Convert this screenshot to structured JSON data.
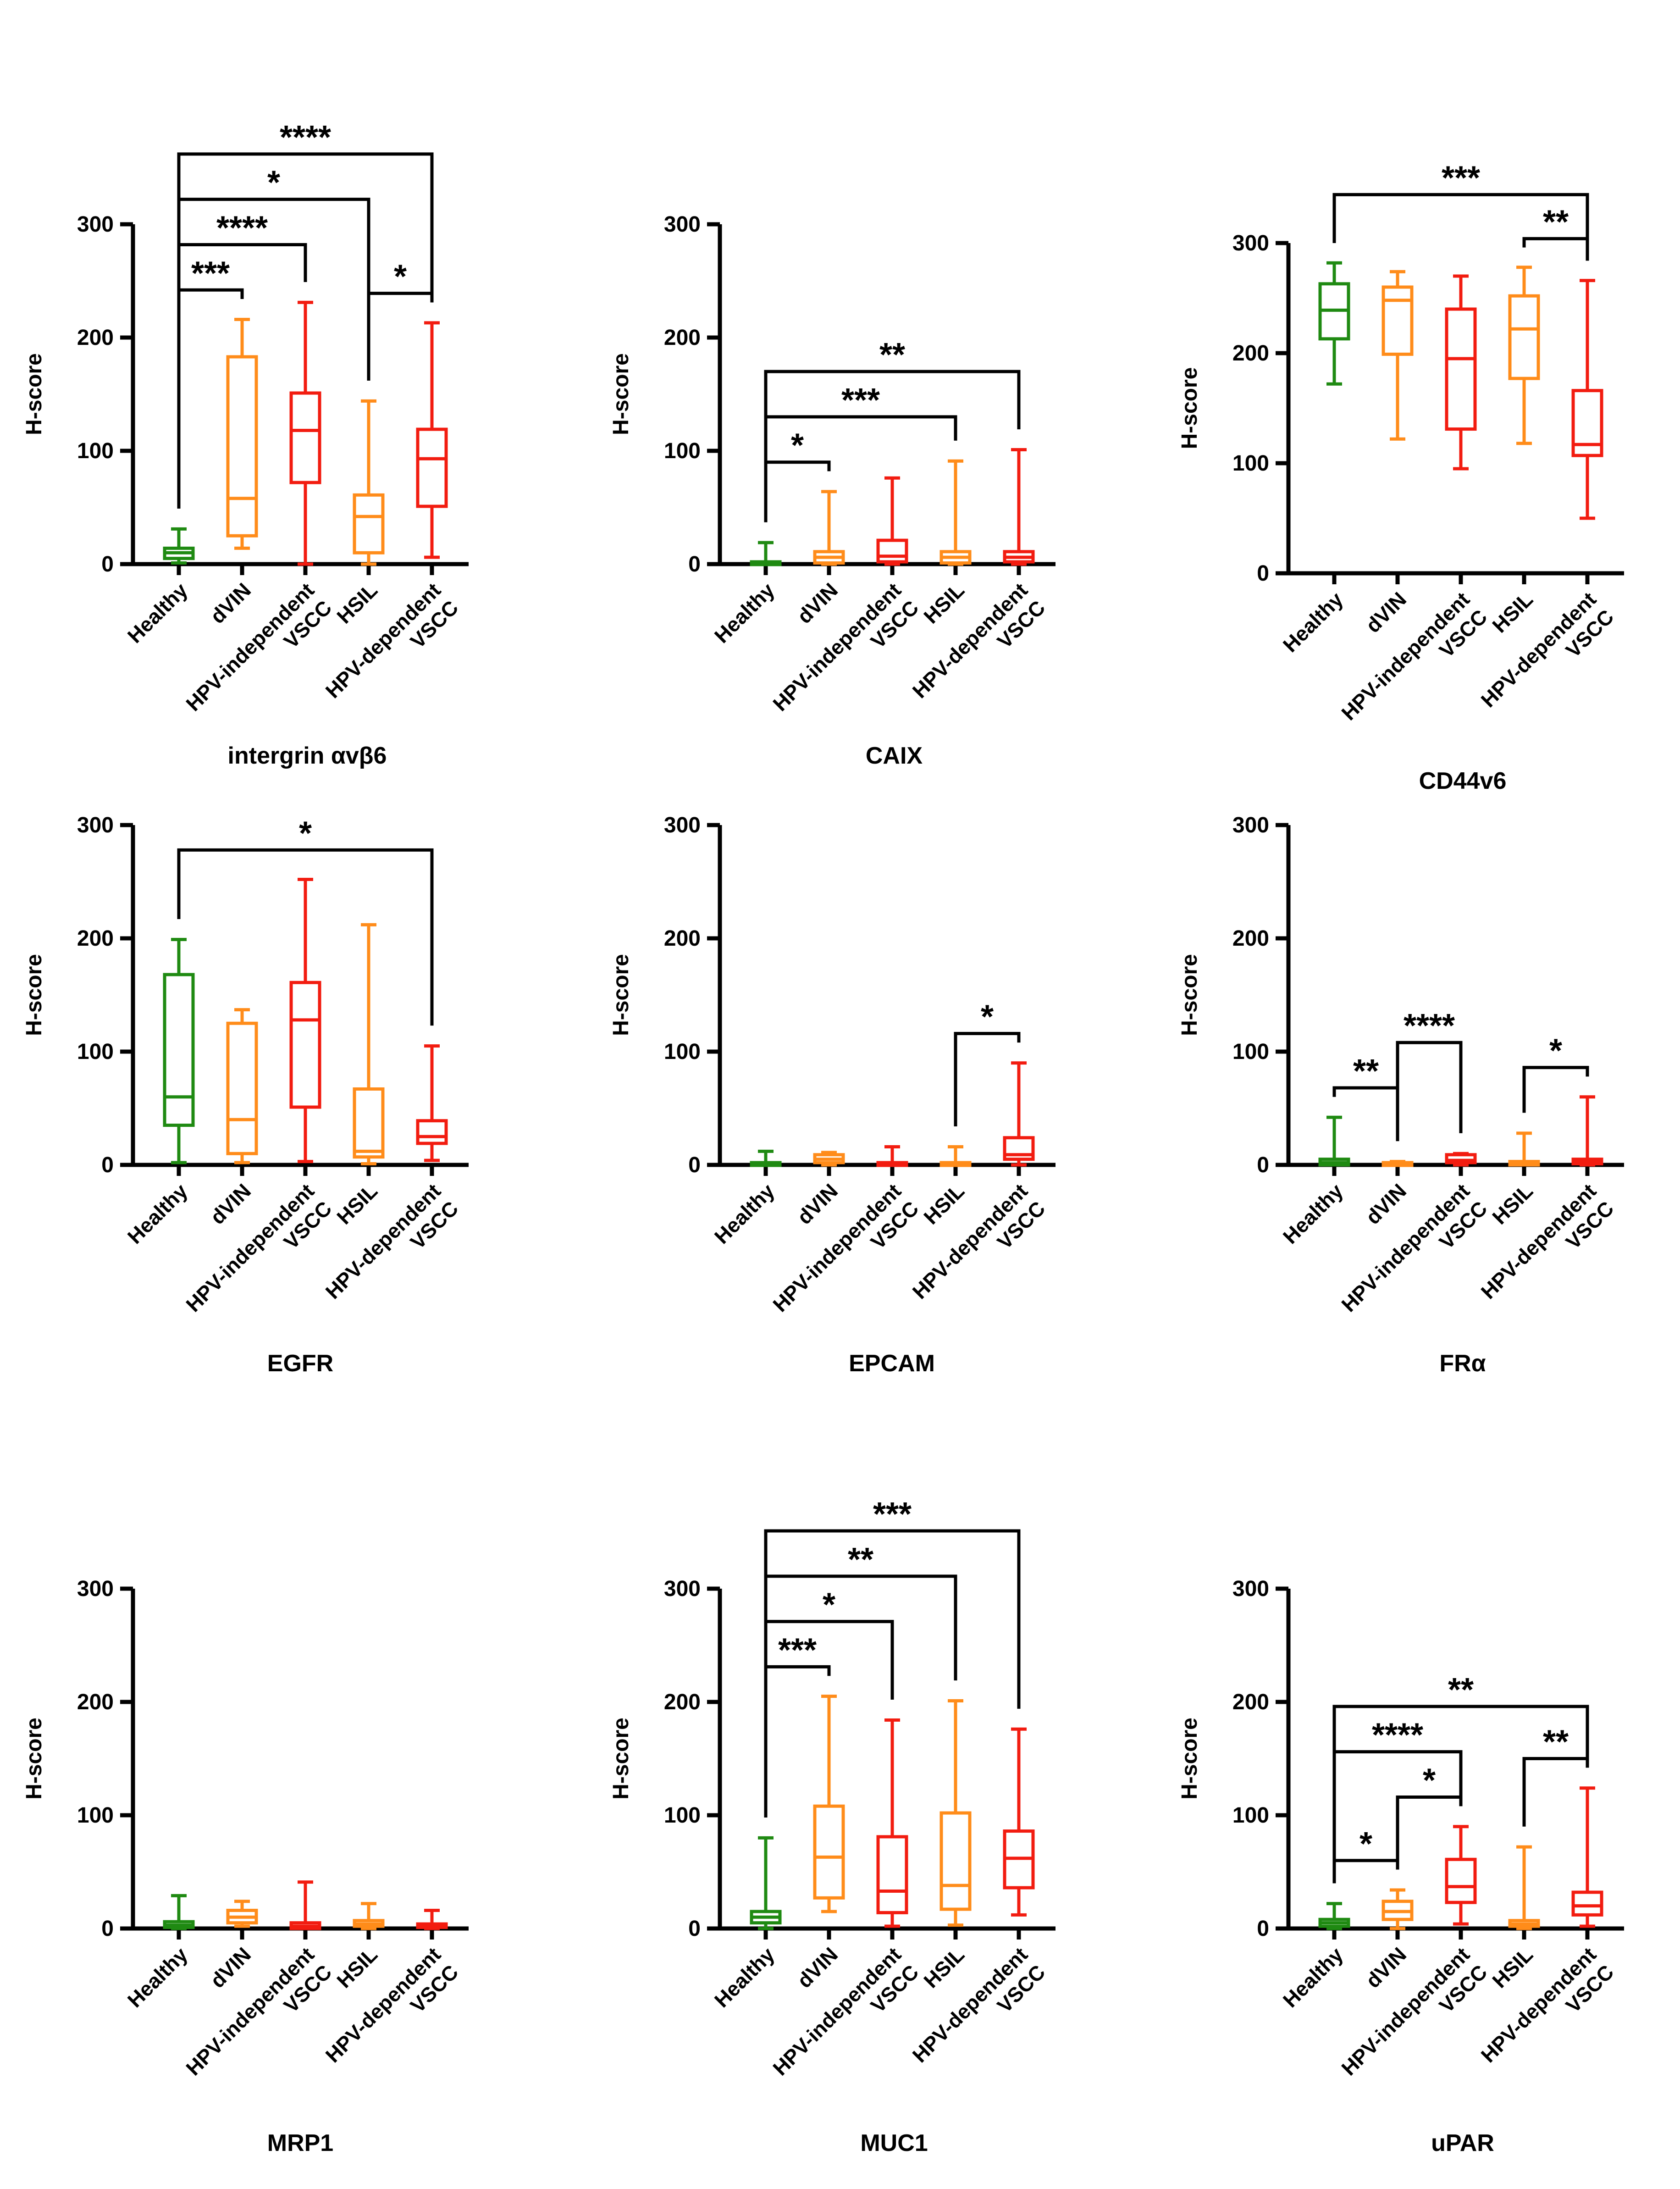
{
  "chart_data": [
    {
      "type": "box",
      "title": "intergrin αvβ6",
      "ylabel": "H-score",
      "ylim": [
        0,
        300
      ],
      "yticks": [
        "0",
        "100",
        "200",
        "300"
      ],
      "categories": [
        "Healthy",
        "dVIN",
        "HPV-independent VSCC",
        "HSIL",
        "HPV-dependent VSCC"
      ],
      "boxes": [
        {
          "min": 1,
          "q1": 5,
          "median": 10,
          "q3": 14,
          "max": 31
        },
        {
          "min": 14,
          "q1": 25,
          "median": 58,
          "q3": 183,
          "max": 216
        },
        {
          "min": 0,
          "q1": 72,
          "median": 118,
          "q3": 151,
          "max": 231
        },
        {
          "min": 0,
          "q1": 10,
          "median": 42,
          "q3": 61,
          "max": 144
        },
        {
          "min": 6,
          "q1": 51,
          "median": 93,
          "q3": 119,
          "max": 213
        }
      ],
      "significance": [
        {
          "from": 0,
          "to": 1,
          "label": "***"
        },
        {
          "from": 0,
          "to": 2,
          "label": "****"
        },
        {
          "from": 0,
          "to": 3,
          "label": "*"
        },
        {
          "from": 0,
          "to": 4,
          "label": "****"
        },
        {
          "from": 3,
          "to": 4,
          "label": "*"
        }
      ]
    },
    {
      "type": "box",
      "title": "CAIX",
      "ylabel": "H-score",
      "ylim": [
        0,
        300
      ],
      "yticks": [
        "0",
        "100",
        "200",
        "300"
      ],
      "categories": [
        "Healthy",
        "dVIN",
        "HPV-independent VSCC",
        "HSIL",
        "HPV-dependent VSCC"
      ],
      "boxes": [
        {
          "min": 0,
          "q1": 0,
          "median": 1,
          "q3": 2,
          "max": 19
        },
        {
          "min": 0,
          "q1": 1,
          "median": 6,
          "q3": 11,
          "max": 64
        },
        {
          "min": 0,
          "q1": 2,
          "median": 7,
          "q3": 21,
          "max": 76
        },
        {
          "min": 0,
          "q1": 1,
          "median": 6,
          "q3": 11,
          "max": 91
        },
        {
          "min": 0,
          "q1": 2,
          "median": 6,
          "q3": 11,
          "max": 101
        }
      ],
      "significance": [
        {
          "from": 0,
          "to": 1,
          "label": "*"
        },
        {
          "from": 0,
          "to": 3,
          "label": "***"
        },
        {
          "from": 0,
          "to": 4,
          "label": "**"
        }
      ]
    },
    {
      "type": "box",
      "title": "CD44v6",
      "ylabel": "H-score",
      "ylim": [
        0,
        300
      ],
      "yticks": [
        "0",
        "100",
        "200",
        "300"
      ],
      "categories": [
        "Healthy",
        "dVIN",
        "HPV-independent VSCC",
        "HSIL",
        "HPV-dependent VSCC"
      ],
      "boxes": [
        {
          "min": 172,
          "q1": 213,
          "median": 239,
          "q3": 263,
          "max": 282
        },
        {
          "min": 122,
          "q1": 199,
          "median": 248,
          "q3": 260,
          "max": 274
        },
        {
          "min": 95,
          "q1": 131,
          "median": 195,
          "q3": 240,
          "max": 270
        },
        {
          "min": 118,
          "q1": 177,
          "median": 222,
          "q3": 252,
          "max": 278
        },
        {
          "min": 50,
          "q1": 107,
          "median": 117,
          "q3": 166,
          "max": 266
        }
      ],
      "significance": [
        {
          "from": 0,
          "to": 4,
          "label": "***"
        },
        {
          "from": 3,
          "to": 4,
          "label": "**"
        }
      ]
    },
    {
      "type": "box",
      "title": "EGFR",
      "ylabel": "H-score",
      "ylim": [
        0,
        300
      ],
      "yticks": [
        "0",
        "100",
        "200",
        "300"
      ],
      "categories": [
        "Healthy",
        "dVIN",
        "HPV-independent VSCC",
        "HSIL",
        "HPV-dependent VSCC"
      ],
      "boxes": [
        {
          "min": 2,
          "q1": 35,
          "median": 60,
          "q3": 168,
          "max": 199
        },
        {
          "min": 2,
          "q1": 10,
          "median": 40,
          "q3": 125,
          "max": 137
        },
        {
          "min": 3,
          "q1": 51,
          "median": 128,
          "q3": 161,
          "max": 252
        },
        {
          "min": 1,
          "q1": 7,
          "median": 12,
          "q3": 67,
          "max": 212
        },
        {
          "min": 4,
          "q1": 19,
          "median": 25,
          "q3": 39,
          "max": 105
        }
      ],
      "significance": [
        {
          "from": 0,
          "to": 4,
          "label": "*"
        }
      ]
    },
    {
      "type": "box",
      "title": "EPCAM",
      "ylabel": "H-score",
      "ylim": [
        0,
        300
      ],
      "yticks": [
        "0",
        "100",
        "200",
        "300"
      ],
      "categories": [
        "Healthy",
        "dVIN",
        "HPV-independent VSCC",
        "HSIL",
        "HPV-dependent VSCC"
      ],
      "boxes": [
        {
          "min": 0,
          "q1": 0,
          "median": 1,
          "q3": 2,
          "max": 12
        },
        {
          "min": 0,
          "q1": 2,
          "median": 5,
          "q3": 9,
          "max": 11
        },
        {
          "min": 0,
          "q1": 0,
          "median": 1,
          "q3": 2,
          "max": 16
        },
        {
          "min": 0,
          "q1": 0,
          "median": 1,
          "q3": 2,
          "max": 16
        },
        {
          "min": 0,
          "q1": 5,
          "median": 9,
          "q3": 24,
          "max": 90
        }
      ],
      "significance": [
        {
          "from": 3,
          "to": 4,
          "label": "*"
        }
      ]
    },
    {
      "type": "box",
      "title": "FRα",
      "ylabel": "H-score",
      "ylim": [
        0,
        300
      ],
      "yticks": [
        "0",
        "100",
        "200",
        "300"
      ],
      "categories": [
        "Healthy",
        "dVIN",
        "HPV-independent VSCC",
        "HSIL",
        "HPV-dependent VSCC"
      ],
      "boxes": [
        {
          "min": 0,
          "q1": 0,
          "median": 2,
          "q3": 5,
          "max": 42
        },
        {
          "min": 0,
          "q1": 0,
          "median": 1,
          "q3": 2,
          "max": 3
        },
        {
          "min": 0,
          "q1": 2,
          "median": 4,
          "q3": 9,
          "max": 10
        },
        {
          "min": 0,
          "q1": 0,
          "median": 2,
          "q3": 3,
          "max": 28
        },
        {
          "min": 0,
          "q1": 1,
          "median": 3,
          "q3": 5,
          "max": 60
        }
      ],
      "significance": [
        {
          "from": 0,
          "to": 1,
          "label": "**"
        },
        {
          "from": 1,
          "to": 2,
          "label": "****"
        },
        {
          "from": 3,
          "to": 4,
          "label": "*"
        }
      ]
    },
    {
      "type": "box",
      "title": "MRP1",
      "ylabel": "H-score",
      "ylim": [
        0,
        300
      ],
      "yticks": [
        "0",
        "100",
        "200",
        "300"
      ],
      "categories": [
        "Healthy",
        "dVIN",
        "HPV-independent VSCC",
        "HSIL",
        "HPV-dependent VSCC"
      ],
      "boxes": [
        {
          "min": 0,
          "q1": 1,
          "median": 3,
          "q3": 6,
          "max": 29
        },
        {
          "min": 2,
          "q1": 5,
          "median": 10,
          "q3": 16,
          "max": 24
        },
        {
          "min": 0,
          "q1": 0,
          "median": 2,
          "q3": 5,
          "max": 41
        },
        {
          "min": 0,
          "q1": 2,
          "median": 4,
          "q3": 7,
          "max": 22
        },
        {
          "min": 0,
          "q1": 1,
          "median": 2,
          "q3": 4,
          "max": 16
        }
      ],
      "significance": []
    },
    {
      "type": "box",
      "title": "MUC1",
      "ylabel": "H-score",
      "ylim": [
        0,
        300
      ],
      "yticks": [
        "0",
        "100",
        "200",
        "300"
      ],
      "categories": [
        "Healthy",
        "dVIN",
        "HPV-independent VSCC",
        "HSIL",
        "HPV-dependent VSCC"
      ],
      "boxes": [
        {
          "min": 0,
          "q1": 5,
          "median": 10,
          "q3": 15,
          "max": 80
        },
        {
          "min": 15,
          "q1": 27,
          "median": 63,
          "q3": 108,
          "max": 205
        },
        {
          "min": 2,
          "q1": 14,
          "median": 33,
          "q3": 81,
          "max": 184
        },
        {
          "min": 3,
          "q1": 17,
          "median": 38,
          "q3": 102,
          "max": 201
        },
        {
          "min": 12,
          "q1": 36,
          "median": 62,
          "q3": 86,
          "max": 176
        }
      ],
      "significance": [
        {
          "from": 0,
          "to": 1,
          "label": "***"
        },
        {
          "from": 0,
          "to": 2,
          "label": "*"
        },
        {
          "from": 0,
          "to": 3,
          "label": "**"
        },
        {
          "from": 0,
          "to": 4,
          "label": "***"
        }
      ]
    },
    {
      "type": "box",
      "title": "uPAR",
      "ylabel": "H-score",
      "ylim": [
        0,
        300
      ],
      "yticks": [
        "0",
        "100",
        "200",
        "300"
      ],
      "categories": [
        "Healthy",
        "dVIN",
        "HPV-independent VSCC",
        "HSIL",
        "HPV-dependent VSCC"
      ],
      "boxes": [
        {
          "min": 0,
          "q1": 2,
          "median": 5,
          "q3": 8,
          "max": 22
        },
        {
          "min": 0,
          "q1": 8,
          "median": 15,
          "q3": 24,
          "max": 34
        },
        {
          "min": 4,
          "q1": 23,
          "median": 37,
          "q3": 61,
          "max": 90
        },
        {
          "min": 0,
          "q1": 2,
          "median": 4,
          "q3": 7,
          "max": 72
        },
        {
          "min": 2,
          "q1": 12,
          "median": 20,
          "q3": 32,
          "max": 124
        }
      ],
      "significance": [
        {
          "from": 0,
          "to": 1,
          "label": "*"
        },
        {
          "from": 0,
          "to": 2,
          "label": "****"
        },
        {
          "from": 0,
          "to": 4,
          "label": "**"
        },
        {
          "from": 1,
          "to": 2,
          "label": "*"
        },
        {
          "from": 3,
          "to": 4,
          "label": "**"
        }
      ]
    }
  ],
  "colors": [
    "#1f8a12",
    "#ff8c1a",
    "#f21c10",
    "#ff8c1a",
    "#f21c10"
  ]
}
